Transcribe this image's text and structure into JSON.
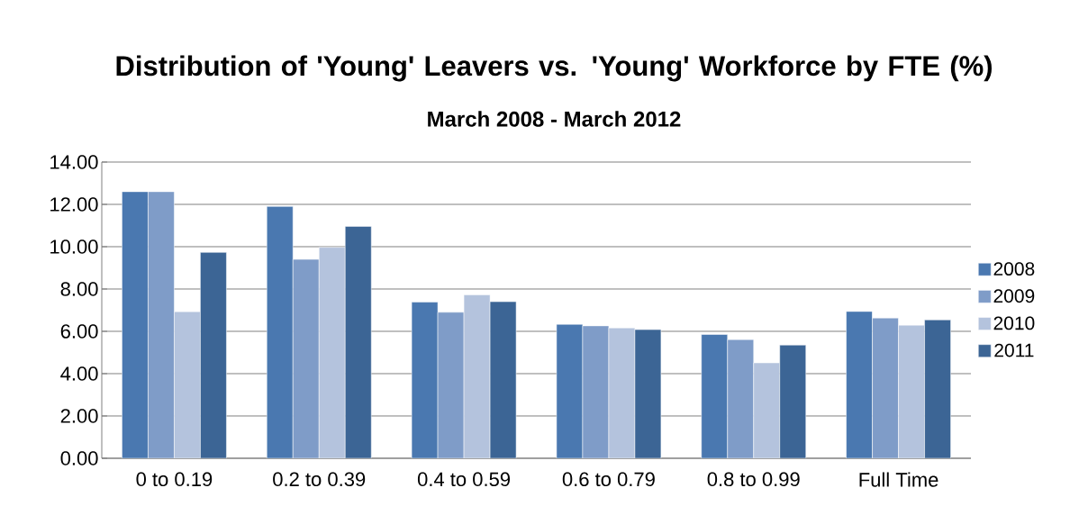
{
  "chart_data": {
    "type": "bar",
    "title": "Distribution of 'Young' Leavers vs. 'Young' Workforce by FTE (%)",
    "subtitle": "March 2008 - March 2012",
    "categories": [
      "0 to 0.19",
      "0.2 to 0.39",
      "0.4 to 0.59",
      "0.6 to 0.79",
      "0.8 to 0.99",
      "Full Time"
    ],
    "series": [
      {
        "name": "2008",
        "color": "#4a78b0",
        "values": [
          12.6,
          11.9,
          7.38,
          6.33,
          5.85,
          6.94
        ]
      },
      {
        "name": "2009",
        "color": "#7f9cc8",
        "values": [
          12.6,
          9.4,
          6.9,
          6.26,
          5.61,
          6.63
        ]
      },
      {
        "name": "2010",
        "color": "#b4c3dd",
        "values": [
          6.93,
          9.97,
          7.72,
          6.16,
          4.51,
          6.29
        ]
      },
      {
        "name": "2011",
        "color": "#3c6595",
        "values": [
          9.73,
          10.96,
          7.4,
          6.08,
          5.35,
          6.54
        ]
      }
    ],
    "ylim": [
      0,
      14
    ],
    "yticks": [
      {
        "value": 0,
        "label": "0.00"
      },
      {
        "value": 2,
        "label": "2.00"
      },
      {
        "value": 4,
        "label": "4.00"
      },
      {
        "value": 6,
        "label": "6.00"
      },
      {
        "value": 8,
        "label": "8.00"
      },
      {
        "value": 10,
        "label": "10.00"
      },
      {
        "value": 12,
        "label": "12.00"
      },
      {
        "value": 14,
        "label": "14.00"
      }
    ],
    "grid": "y",
    "legend": "right"
  }
}
